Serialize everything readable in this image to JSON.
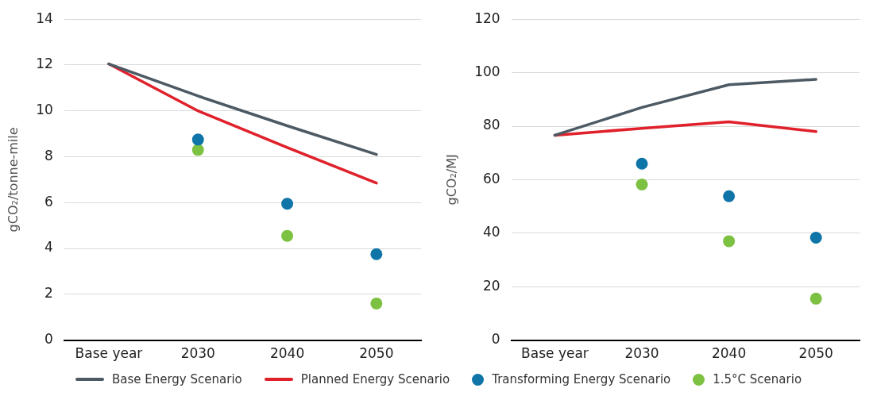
{
  "chart_data": [
    {
      "type": "line",
      "ylabel": "gCO₂/tonne-mile",
      "categories": [
        "Base year",
        "2030",
        "2040",
        "2050"
      ],
      "ylim": [
        0,
        14
      ],
      "yticks": [
        0,
        2,
        4,
        6,
        8,
        10,
        12,
        14
      ],
      "grid": "y",
      "legend": "bottom",
      "series": [
        {
          "name": "Base Energy Scenario",
          "color": "#4d5a64",
          "marker": "none",
          "values": [
            12.05,
            10.65,
            9.35,
            8.1
          ]
        },
        {
          "name": "Planned Energy Scenario",
          "color": "#e0202b",
          "marker": "none",
          "values": [
            12.05,
            10,
            8.4,
            6.85
          ]
        },
        {
          "name": "Transforming Energy Scenario",
          "color": "#0f75a8",
          "type": "scatter",
          "marker": "circle",
          "values": [
            null,
            8.75,
            5.95,
            3.75
          ]
        },
        {
          "name": "1.5°C Scenario",
          "color": "#7dc142",
          "type": "scatter",
          "marker": "circle",
          "values": [
            null,
            8.3,
            4.55,
            1.6
          ]
        }
      ]
    },
    {
      "type": "line",
      "ylabel": "gCO₂/MJ",
      "categories": [
        "Base year",
        "2030",
        "2040",
        "2050"
      ],
      "ylim": [
        0,
        120
      ],
      "yticks": [
        0,
        20,
        40,
        60,
        80,
        100,
        120
      ],
      "grid": "y",
      "series": [
        {
          "color": "#4d5a64",
          "marker": "none",
          "values": [
            76.6,
            87,
            95.5,
            97.5
          ]
        },
        {
          "color": "#e0202b",
          "marker": "none",
          "values": [
            76.6,
            79.2,
            81.6,
            78
          ]
        },
        {
          "color": "#0f75a8",
          "type": "scatter",
          "marker": "circle",
          "values": [
            null,
            66,
            53.8,
            38.3
          ]
        },
        {
          "color": "#7dc142",
          "type": "scatter",
          "marker": "circle",
          "values": [
            null,
            58.2,
            37,
            15.5
          ]
        }
      ]
    }
  ]
}
